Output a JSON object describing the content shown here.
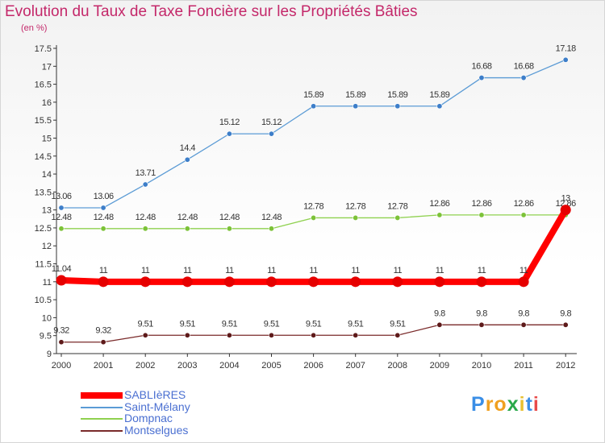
{
  "chart_data": {
    "type": "line",
    "title": "Evolution du Taux de Taxe Foncière sur les Propriétés Bâties",
    "subtitle": "(en %)",
    "ylim": [
      9,
      17.5
    ],
    "ytick_labels": [
      "9",
      "9.5",
      "10",
      "10.5",
      "11",
      "11.5",
      "12",
      "12.5",
      "13",
      "13.5",
      "14",
      "14.5",
      "15",
      "15.5",
      "16",
      "16.5",
      "17",
      "17.5"
    ],
    "categories": [
      "2000",
      "2001",
      "2002",
      "2003",
      "2004",
      "2005",
      "2006",
      "2007",
      "2008",
      "2009",
      "2010",
      "2011",
      "2012"
    ],
    "series": [
      {
        "name": "Saint-Mélany",
        "color": "#5b9bd5",
        "point_color": "#3d7ec9",
        "values": [
          13.06,
          13.06,
          13.71,
          14.4,
          15.12,
          15.12,
          15.89,
          15.89,
          15.89,
          15.89,
          16.68,
          16.68,
          17.18
        ],
        "labels": [
          "13.06",
          "13.06",
          "13.71",
          "14.4",
          "15.12",
          "15.12",
          "15.89",
          "15.89",
          "15.89",
          "15.89",
          "16.68",
          "16.68",
          "17.18"
        ]
      },
      {
        "name": "Dompnac",
        "color": "#8fd14f",
        "point_color": "#7cc238",
        "values": [
          12.48,
          12.48,
          12.48,
          12.48,
          12.48,
          12.48,
          12.78,
          12.78,
          12.78,
          12.86,
          12.86,
          12.86,
          12.86
        ],
        "labels": [
          "12.48",
          "12.48",
          "12.48",
          "12.48",
          "12.48",
          "12.48",
          "12.78",
          "12.78",
          "12.78",
          "12.86",
          "12.86",
          "12.86",
          "12.86"
        ]
      },
      {
        "name": "SABLIèRES",
        "color": "#ff0000",
        "point_color": "#e60000",
        "thick": true,
        "values": [
          11.04,
          11,
          11,
          11,
          11,
          11,
          11,
          11,
          11,
          11,
          11,
          11,
          13
        ],
        "labels": [
          "11.04",
          "11",
          "11",
          "11",
          "11",
          "11",
          "11",
          "11",
          "11",
          "11",
          "11",
          "11",
          "13"
        ]
      },
      {
        "name": "Montselgues",
        "color": "#7a2a2a",
        "point_color": "#5e1a1a",
        "values": [
          9.32,
          9.32,
          9.51,
          9.51,
          9.51,
          9.51,
          9.51,
          9.51,
          9.51,
          9.8,
          9.8,
          9.8,
          9.8
        ],
        "labels": [
          "9.32",
          "9.32",
          "9.51",
          "9.51",
          "9.51",
          "9.51",
          "9.51",
          "9.51",
          "9.51",
          "9.8",
          "9.8",
          "9.8",
          "9.8"
        ]
      }
    ],
    "legend": [
      {
        "name": "SABLIèRES",
        "color": "#ff0000"
      },
      {
        "name": "Saint-Mélany",
        "color": "#5b9bd5"
      },
      {
        "name": "Dompnac",
        "color": "#8fd14f"
      },
      {
        "name": "Montselgues",
        "color": "#7a2a2a"
      }
    ],
    "grid": false
  },
  "logo": {
    "letters": [
      "P",
      "r",
      "o",
      "x",
      "i",
      "t",
      "i"
    ],
    "colors": [
      "#3a8ee6",
      "#f0a020",
      "#f0a020",
      "#2aa84a",
      "#e8c030",
      "#3a8ee6",
      "#e84a4a"
    ]
  }
}
